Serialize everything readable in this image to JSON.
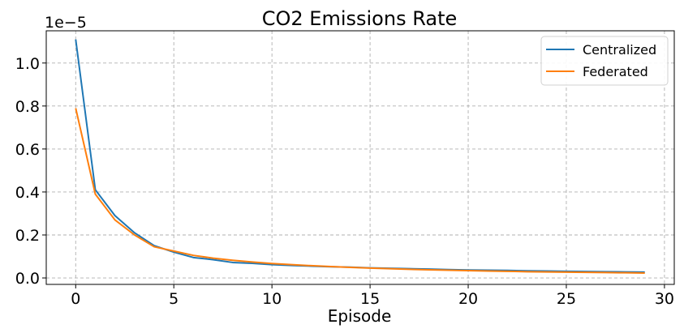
{
  "chart_data": {
    "type": "line",
    "title": "CO2 Emissions Rate",
    "xlabel": "Episode",
    "ylabel": "",
    "y_offset_label": "1e−5",
    "y_scale": 1e-05,
    "xlim": [
      -1.5,
      30.5
    ],
    "ylim": [
      -0.03,
      1.15
    ],
    "xticks": [
      0,
      5,
      10,
      15,
      20,
      25,
      30
    ],
    "yticks": [
      0.0,
      0.2,
      0.4,
      0.6,
      0.8,
      1.0
    ],
    "grid": true,
    "legend_position": "top-right",
    "x": [
      0,
      1,
      2,
      3,
      4,
      5,
      6,
      7,
      8,
      9,
      10,
      11,
      12,
      13,
      14,
      15,
      16,
      17,
      18,
      19,
      20,
      21,
      22,
      23,
      24,
      25,
      26,
      27,
      28,
      29
    ],
    "series": [
      {
        "name": "Centralized",
        "color": "#1f77b4",
        "values": [
          1.11,
          0.41,
          0.29,
          0.21,
          0.15,
          0.12,
          0.095,
          0.085,
          0.072,
          0.068,
          0.062,
          0.058,
          0.055,
          0.052,
          0.05,
          0.047,
          0.045,
          0.043,
          0.041,
          0.039,
          0.037,
          0.036,
          0.035,
          0.033,
          0.032,
          0.031,
          0.03,
          0.029,
          0.028,
          0.027
        ]
      },
      {
        "name": "Federated",
        "color": "#ff7f0e",
        "values": [
          0.79,
          0.39,
          0.27,
          0.2,
          0.145,
          0.125,
          0.105,
          0.092,
          0.082,
          0.074,
          0.067,
          0.062,
          0.057,
          0.053,
          0.049,
          0.046,
          0.043,
          0.04,
          0.038,
          0.036,
          0.034,
          0.032,
          0.031,
          0.029,
          0.028,
          0.027,
          0.026,
          0.025,
          0.024,
          0.023
        ]
      }
    ]
  }
}
